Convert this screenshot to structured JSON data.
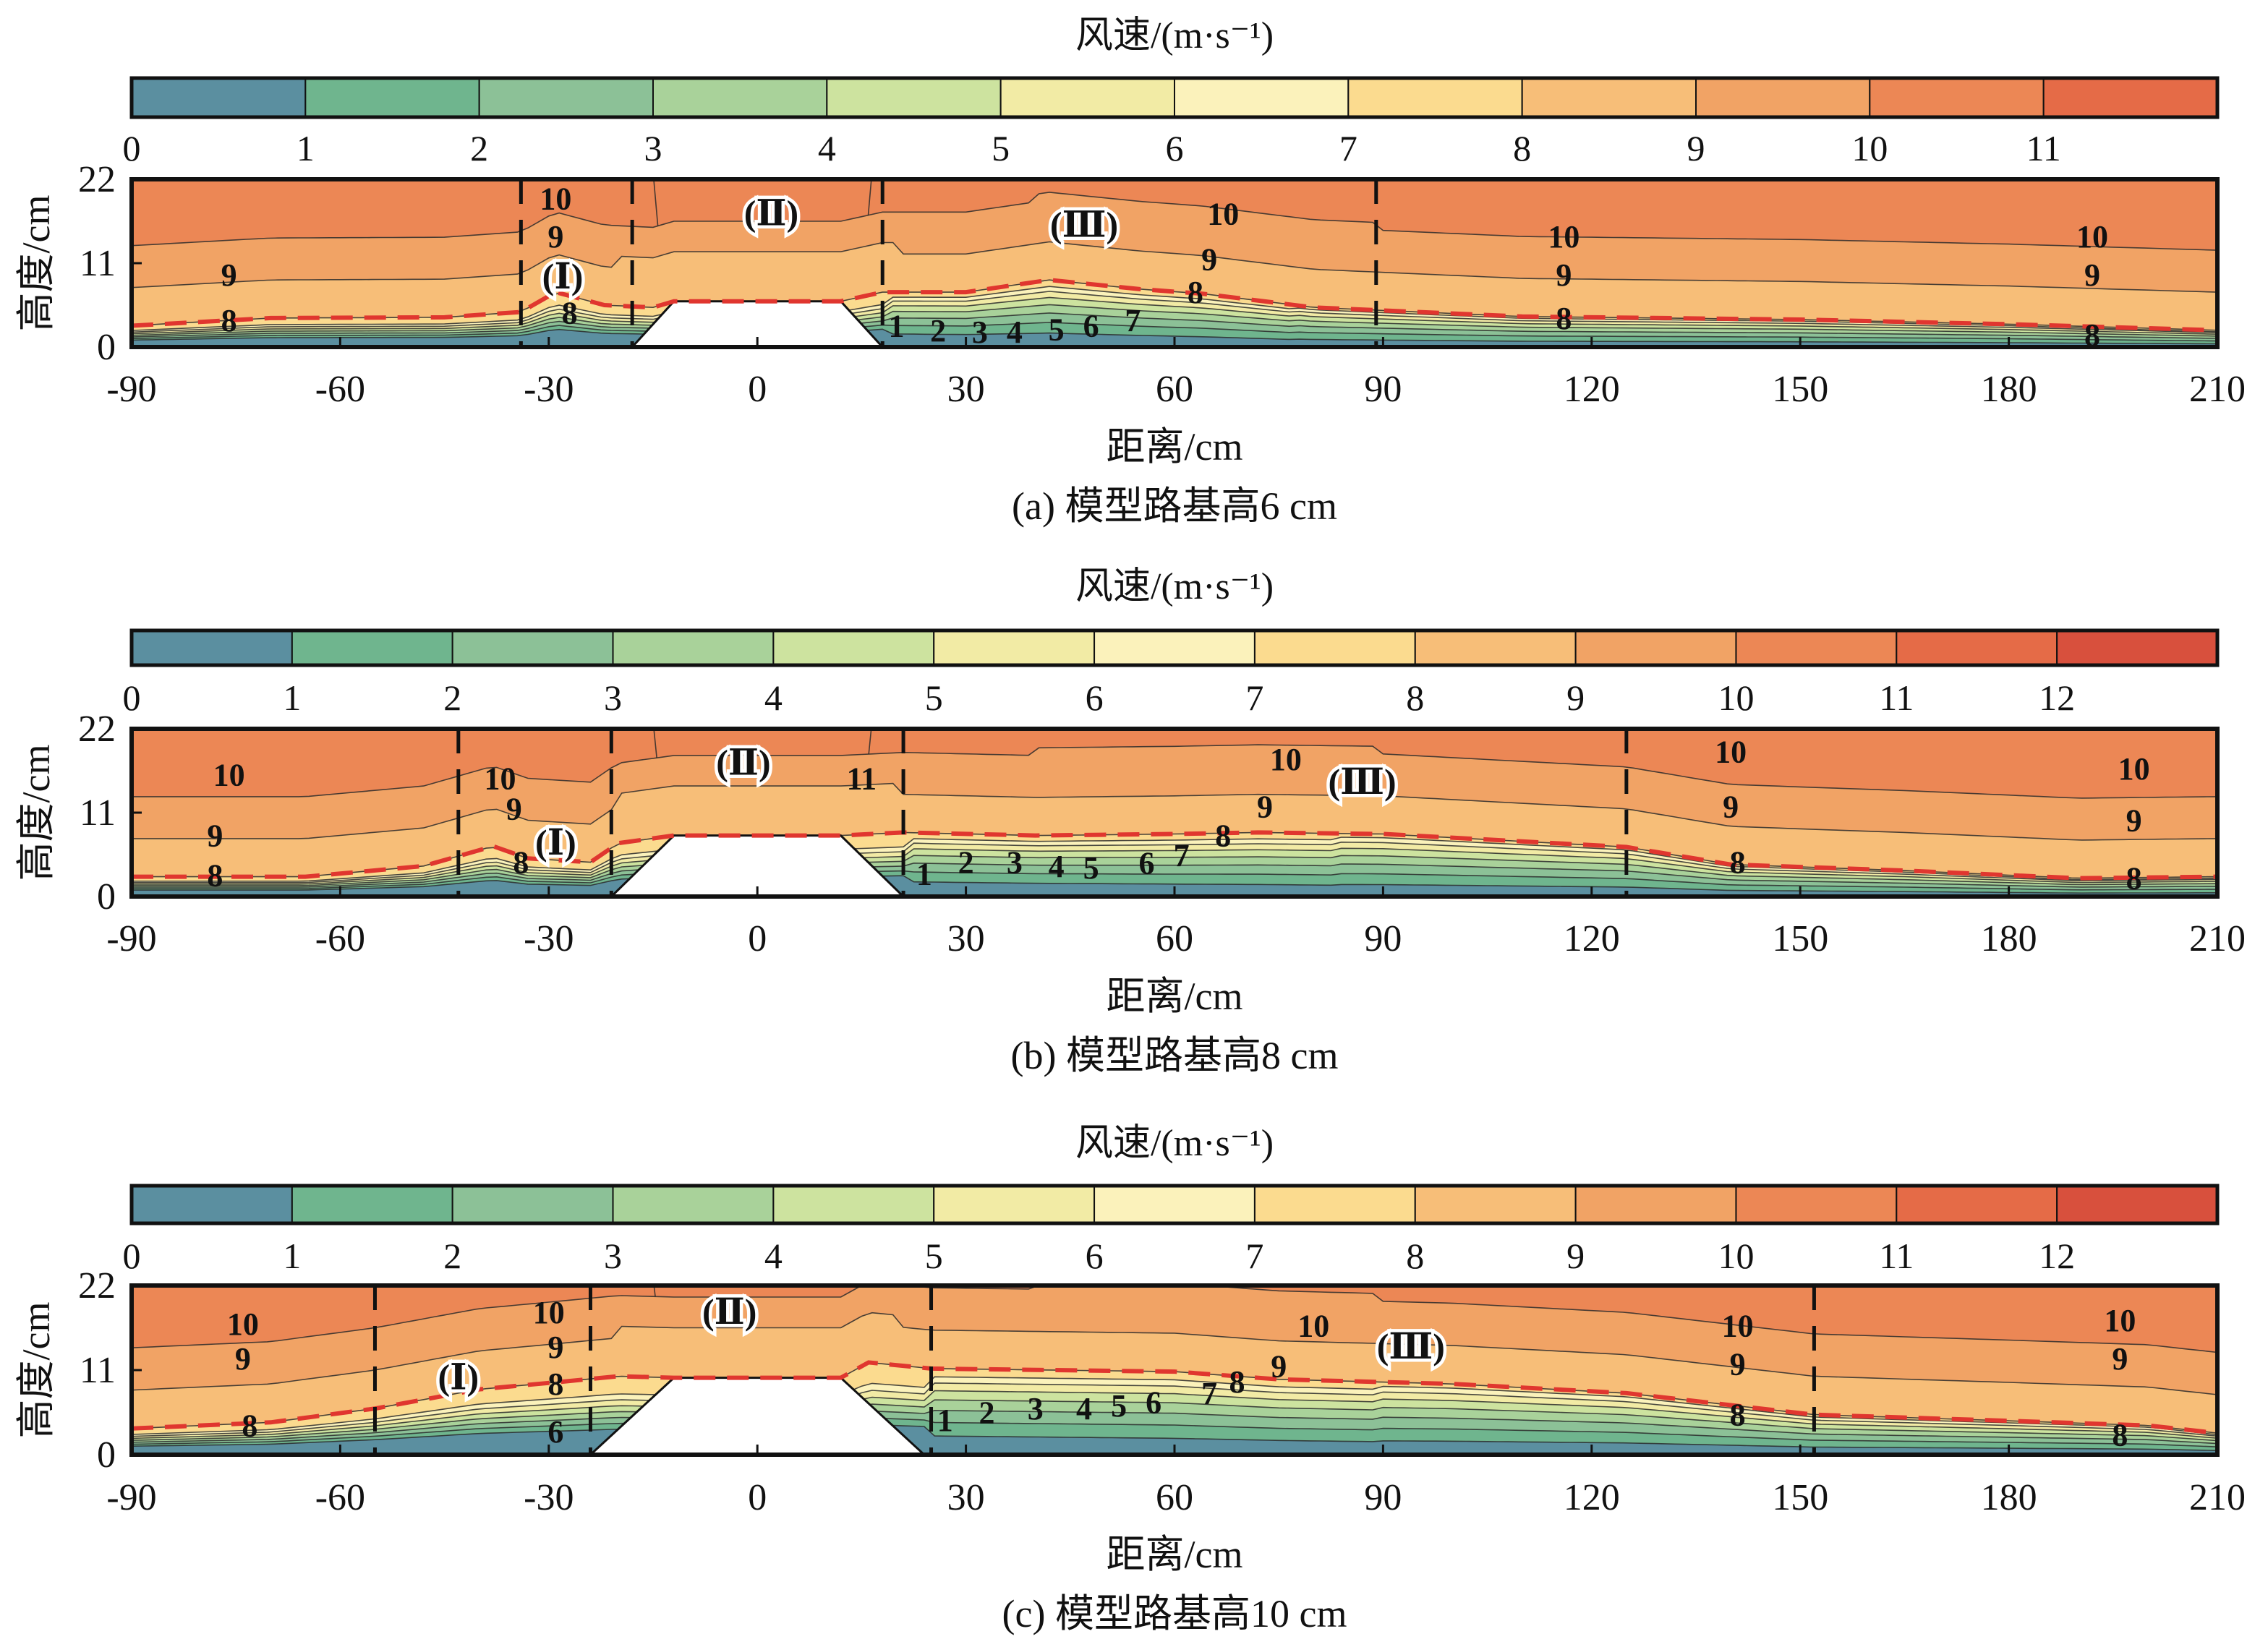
{
  "colors": {
    "bands": [
      "#5b8fa0",
      "#6fb58e",
      "#8cc197",
      "#a9d29a",
      "#cde39f",
      "#f2eba5",
      "#fbf2bb",
      "#fbdb8f",
      "#f7be78",
      "#f1a365",
      "#ec8755",
      "#e56b47",
      "#d8503d"
    ],
    "threshold_line": "#e0362f",
    "contour_line": "#2a2a2a",
    "subgrade": "#ffffff"
  },
  "chart_data": [
    {
      "type": "heatmap",
      "caption": "(a) 模型路基高6 cm",
      "colorbar": {
        "title": "风速/(m·s⁻¹)",
        "ticks": [
          "0",
          "1",
          "2",
          "3",
          "4",
          "5",
          "6",
          "7",
          "8",
          "9",
          "10",
          "11"
        ],
        "min": 0,
        "max": 12
      },
      "xlabel": "距离/cm",
      "ylabel": "高度/cm",
      "xlim": [
        -90,
        210
      ],
      "ylim": [
        0,
        22
      ],
      "xticks": [
        "-90",
        "-60",
        "-30",
        "0",
        "30",
        "60",
        "90",
        "120",
        "150",
        "180",
        "210"
      ],
      "yticks": [
        "0",
        "11",
        "22"
      ],
      "subgrade": {
        "height": 6,
        "top_half_width": 12,
        "base_half_width": 18
      },
      "zone_dividers_x": [
        -34,
        -18,
        18,
        89
      ],
      "regions": [
        {
          "label": "(Ⅰ)",
          "x": -28,
          "y": 9.2
        },
        {
          "label": "(Ⅱ)",
          "x": 2,
          "y": 17.5
        },
        {
          "label": "(Ⅲ)",
          "x": 47,
          "y": 16
        }
      ],
      "contour_labels": [
        {
          "text": "10",
          "x": -29,
          "y": 19.5
        },
        {
          "text": "9",
          "x": -29,
          "y": 14.5
        },
        {
          "text": "9",
          "x": -76,
          "y": 9.5
        },
        {
          "text": "8",
          "x": -76,
          "y": 3.5
        },
        {
          "text": "8",
          "x": -27,
          "y": 4.5
        },
        {
          "text": "1",
          "x": 20,
          "y": 2.8
        },
        {
          "text": "2",
          "x": 26,
          "y": 2.2
        },
        {
          "text": "3",
          "x": 32,
          "y": 2
        },
        {
          "text": "4",
          "x": 37,
          "y": 2
        },
        {
          "text": "5",
          "x": 43,
          "y": 2.3
        },
        {
          "text": "6",
          "x": 48,
          "y": 2.8
        },
        {
          "text": "7",
          "x": 54,
          "y": 3.5
        },
        {
          "text": "8",
          "x": 63,
          "y": 7.2
        },
        {
          "text": "9",
          "x": 65,
          "y": 11.5
        },
        {
          "text": "10",
          "x": 67,
          "y": 17.5
        },
        {
          "text": "10",
          "x": 116,
          "y": 14.5
        },
        {
          "text": "9",
          "x": 116,
          "y": 9.5
        },
        {
          "text": "8",
          "x": 116,
          "y": 3.8
        },
        {
          "text": "10",
          "x": 192,
          "y": 14.5
        },
        {
          "text": "9",
          "x": 192,
          "y": 9.5
        },
        {
          "text": "8",
          "x": 192,
          "y": 1.6
        }
      ],
      "threshold_curve": [
        [
          -90,
          2.8
        ],
        [
          -70,
          3.8
        ],
        [
          -45,
          3.9
        ],
        [
          -34,
          4.6
        ],
        [
          -29,
          7.2
        ],
        [
          -22,
          5.5
        ],
        [
          -15,
          5.2
        ],
        [
          -12,
          6
        ],
        [
          12,
          6
        ],
        [
          18,
          7.2
        ],
        [
          30,
          7.2
        ],
        [
          42,
          8.8
        ],
        [
          55,
          7.6
        ],
        [
          64,
          7
        ],
        [
          80,
          5.2
        ],
        [
          110,
          4
        ],
        [
          150,
          3.6
        ],
        [
          180,
          3
        ],
        [
          210,
          2.2
        ]
      ]
    },
    {
      "type": "heatmap",
      "caption": "(b) 模型路基高8 cm",
      "colorbar": {
        "title": "风速/(m·s⁻¹)",
        "ticks": [
          "0",
          "1",
          "2",
          "3",
          "4",
          "5",
          "6",
          "7",
          "8",
          "9",
          "10",
          "11",
          "12"
        ],
        "min": 0,
        "max": 13
      },
      "xlabel": "距离/cm",
      "ylabel": "高度/cm",
      "xlim": [
        -90,
        210
      ],
      "ylim": [
        0,
        22
      ],
      "xticks": [
        "-90",
        "-60",
        "-30",
        "0",
        "30",
        "60",
        "90",
        "120",
        "150",
        "180",
        "210"
      ],
      "yticks": [
        "0",
        "11",
        "22"
      ],
      "subgrade": {
        "height": 8,
        "top_half_width": 12,
        "base_half_width": 21
      },
      "zone_dividers_x": [
        -43,
        -21,
        21,
        125
      ],
      "regions": [
        {
          "label": "(Ⅰ)",
          "x": -29,
          "y": 7
        },
        {
          "label": "(Ⅱ)",
          "x": -2,
          "y": 17.5
        },
        {
          "label": "(Ⅲ)",
          "x": 87,
          "y": 15
        }
      ],
      "contour_labels": [
        {
          "text": "10",
          "x": -76,
          "y": 16
        },
        {
          "text": "9",
          "x": -78,
          "y": 8
        },
        {
          "text": "8",
          "x": -78,
          "y": 2.8
        },
        {
          "text": "10",
          "x": -37,
          "y": 15.5
        },
        {
          "text": "9",
          "x": -35,
          "y": 11.5
        },
        {
          "text": "8",
          "x": -34,
          "y": 4.5
        },
        {
          "text": "11",
          "x": 15,
          "y": 15.5
        },
        {
          "text": "1",
          "x": 24,
          "y": 3
        },
        {
          "text": "2",
          "x": 30,
          "y": 4.5
        },
        {
          "text": "3",
          "x": 37,
          "y": 4.5
        },
        {
          "text": "4",
          "x": 43,
          "y": 4
        },
        {
          "text": "5",
          "x": 48,
          "y": 3.8
        },
        {
          "text": "6",
          "x": 56,
          "y": 4.4
        },
        {
          "text": "7",
          "x": 61,
          "y": 5.4
        },
        {
          "text": "8",
          "x": 67,
          "y": 8
        },
        {
          "text": "9",
          "x": 73,
          "y": 11.8
        },
        {
          "text": "10",
          "x": 76,
          "y": 18
        },
        {
          "text": "10",
          "x": 140,
          "y": 19
        },
        {
          "text": "9",
          "x": 140,
          "y": 11.8
        },
        {
          "text": "8",
          "x": 141,
          "y": 4.5
        },
        {
          "text": "10",
          "x": 198,
          "y": 16.8
        },
        {
          "text": "9",
          "x": 198,
          "y": 10
        },
        {
          "text": "8",
          "x": 198,
          "y": 2.4
        }
      ],
      "threshold_curve": [
        [
          -90,
          2.6
        ],
        [
          -65,
          2.6
        ],
        [
          -48,
          4
        ],
        [
          -38,
          6.6
        ],
        [
          -33,
          5
        ],
        [
          -24,
          4.5
        ],
        [
          -20,
          7
        ],
        [
          -12,
          8
        ],
        [
          12,
          8
        ],
        [
          21,
          8.4
        ],
        [
          40,
          8
        ],
        [
          60,
          8.2
        ],
        [
          72,
          8.4
        ],
        [
          90,
          8.2
        ],
        [
          125,
          6.5
        ],
        [
          140,
          4.2
        ],
        [
          165,
          3.4
        ],
        [
          190,
          2.4
        ],
        [
          210,
          2.6
        ]
      ]
    },
    {
      "type": "heatmap",
      "caption": "(c) 模型路基高10 cm",
      "colorbar": {
        "title": "风速/(m·s⁻¹)",
        "ticks": [
          "0",
          "1",
          "2",
          "3",
          "4",
          "5",
          "6",
          "7",
          "8",
          "9",
          "10",
          "11",
          "12"
        ],
        "min": 0,
        "max": 13
      },
      "xlabel": "距离/cm",
      "ylabel": "高度/cm",
      "xlim": [
        -90,
        210
      ],
      "ylim": [
        0,
        22
      ],
      "xticks": [
        "-90",
        "-60",
        "-30",
        "0",
        "30",
        "60",
        "90",
        "120",
        "150",
        "180",
        "210"
      ],
      "yticks": [
        "0",
        "11",
        "22"
      ],
      "subgrade": {
        "height": 10,
        "top_half_width": 12,
        "base_half_width": 24
      },
      "zone_dividers_x": [
        -55,
        -24,
        25,
        152
      ],
      "regions": [
        {
          "label": "(Ⅰ)",
          "x": -43,
          "y": 10
        },
        {
          "label": "(Ⅱ)",
          "x": -4,
          "y": 18.5
        },
        {
          "label": "(Ⅲ)",
          "x": 94,
          "y": 14
        }
      ],
      "contour_labels": [
        {
          "text": "10",
          "x": -74,
          "y": 17
        },
        {
          "text": "9",
          "x": -74,
          "y": 12.5
        },
        {
          "text": "8",
          "x": -73,
          "y": 3.8
        },
        {
          "text": "10",
          "x": -30,
          "y": 18.5
        },
        {
          "text": "9",
          "x": -29,
          "y": 14
        },
        {
          "text": "8",
          "x": -29,
          "y": 9.2
        },
        {
          "text": "6",
          "x": -29,
          "y": 3
        },
        {
          "text": "1",
          "x": 27,
          "y": 4.5
        },
        {
          "text": "2",
          "x": 33,
          "y": 5.5
        },
        {
          "text": "3",
          "x": 40,
          "y": 6
        },
        {
          "text": "4",
          "x": 47,
          "y": 6
        },
        {
          "text": "5",
          "x": 52,
          "y": 6.4
        },
        {
          "text": "6",
          "x": 57,
          "y": 6.8
        },
        {
          "text": "7",
          "x": 65,
          "y": 8
        },
        {
          "text": "8",
          "x": 69,
          "y": 9.5
        },
        {
          "text": "9",
          "x": 75,
          "y": 11.5
        },
        {
          "text": "10",
          "x": 80,
          "y": 16.8
        },
        {
          "text": "10",
          "x": 141,
          "y": 16.8
        },
        {
          "text": "9",
          "x": 141,
          "y": 11.8
        },
        {
          "text": "8",
          "x": 141,
          "y": 5.2
        },
        {
          "text": "10",
          "x": 196,
          "y": 17.5
        },
        {
          "text": "9",
          "x": 196,
          "y": 12.5
        },
        {
          "text": "8",
          "x": 196,
          "y": 2.6
        }
      ],
      "threshold_curve": [
        [
          -90,
          3.4
        ],
        [
          -70,
          4.2
        ],
        [
          -55,
          6
        ],
        [
          -40,
          8.5
        ],
        [
          -28,
          9.5
        ],
        [
          -20,
          10.2
        ],
        [
          -12,
          10
        ],
        [
          12,
          10
        ],
        [
          16,
          12
        ],
        [
          25,
          11.2
        ],
        [
          60,
          10.8
        ],
        [
          75,
          9.8
        ],
        [
          100,
          9.2
        ],
        [
          125,
          8
        ],
        [
          152,
          5.2
        ],
        [
          180,
          4.4
        ],
        [
          200,
          3.8
        ],
        [
          210,
          2.8
        ]
      ]
    }
  ]
}
